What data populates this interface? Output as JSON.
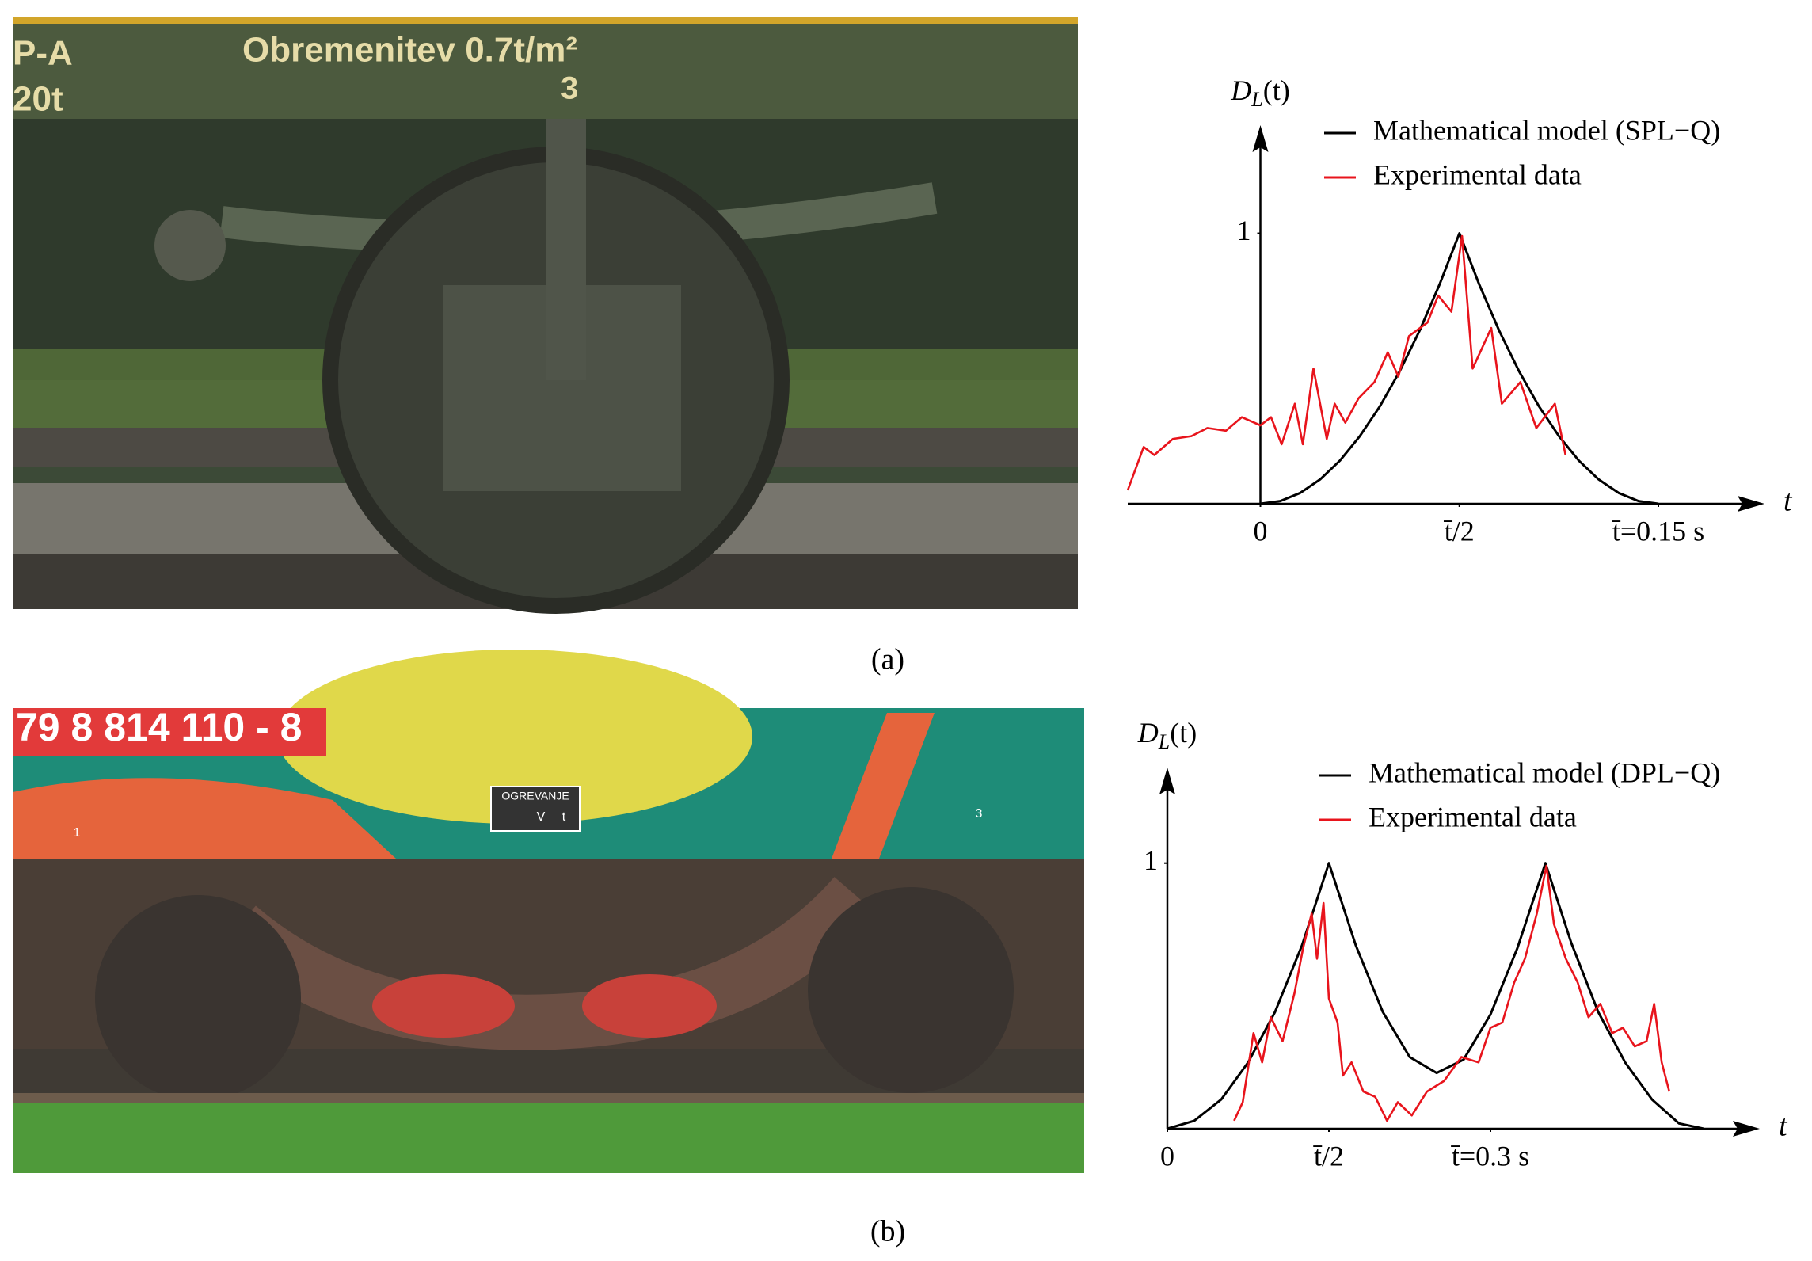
{
  "chart_data": [
    {
      "type": "line",
      "y_label": [
        "D",
        "L",
        "(t)"
      ],
      "x_label": "t",
      "xlim": [
        -0.05,
        0.19
      ],
      "ylim": [
        0,
        1.4
      ],
      "xticks": [
        0,
        {
          "value": 0.075,
          "label": "t̄/2"
        },
        {
          "value": 0.15,
          "label": "t̄=0.15 s"
        }
      ],
      "yticks": [
        1
      ],
      "grid": false,
      "legend": "upper right",
      "series": [
        {
          "name": "Mathematical model (SPL−Q)",
          "color": "#000000",
          "x": [
            0,
            0.0075,
            0.015,
            0.0225,
            0.03,
            0.0375,
            0.045,
            0.0525,
            0.06,
            0.0675,
            0.075,
            0.0825,
            0.09,
            0.0975,
            0.105,
            0.1125,
            0.12,
            0.1275,
            0.135,
            0.1425,
            0.15
          ],
          "values": [
            0,
            0.01,
            0.04,
            0.09,
            0.16,
            0.25,
            0.36,
            0.49,
            0.64,
            0.81,
            1,
            0.81,
            0.64,
            0.49,
            0.36,
            0.25,
            0.16,
            0.09,
            0.04,
            0.01,
            0
          ]
        },
        {
          "name": "Experimental data",
          "color": "#e8141c",
          "x": [
            -0.05,
            -0.044,
            -0.04,
            -0.033,
            -0.026,
            -0.02,
            -0.013,
            -0.007,
            0,
            0.004,
            0.008,
            0.013,
            0.016,
            0.02,
            0.025,
            0.028,
            0.032,
            0.037,
            0.043,
            0.048,
            0.052,
            0.056,
            0.063,
            0.067,
            0.072,
            0.076,
            0.08,
            0.087,
            0.091,
            0.098,
            0.104,
            0.111,
            0.115
          ],
          "values": [
            0.05,
            0.21,
            0.18,
            0.24,
            0.25,
            0.28,
            0.27,
            0.32,
            0.29,
            0.32,
            0.22,
            0.37,
            0.22,
            0.5,
            0.24,
            0.37,
            0.3,
            0.39,
            0.45,
            0.56,
            0.47,
            0.62,
            0.67,
            0.77,
            0.71,
            0.99,
            0.5,
            0.65,
            0.37,
            0.45,
            0.28,
            0.37,
            0.18
          ]
        }
      ]
    },
    {
      "type": "line",
      "y_label": [
        "D",
        "L",
        "(t)"
      ],
      "x_label": "t",
      "xlim": [
        0,
        0.55
      ],
      "ylim": [
        0,
        1.36
      ],
      "xticks": [
        0,
        {
          "value": 0.15,
          "label": "t̄/2"
        },
        {
          "value": 0.3,
          "label": "t̄=0.3 s"
        }
      ],
      "yticks": [
        1
      ],
      "grid": false,
      "legend": "upper right",
      "series": [
        {
          "name": "Mathematical model (DPL−Q)",
          "color": "#000000",
          "x": [
            0,
            0.025,
            0.05,
            0.075,
            0.1,
            0.125,
            0.15,
            0.175,
            0.2,
            0.225,
            0.25,
            0.275,
            0.3,
            0.325,
            0.351,
            0.375,
            0.4,
            0.425,
            0.45,
            0.475,
            0.498
          ],
          "values": [
            0,
            0.03,
            0.11,
            0.25,
            0.44,
            0.69,
            1,
            0.69,
            0.44,
            0.27,
            0.21,
            0.26,
            0.43,
            0.68,
            1,
            0.7,
            0.44,
            0.25,
            0.11,
            0.02,
            0
          ]
        },
        {
          "name": "Experimental data",
          "color": "#e8141c",
          "x": [
            0.062,
            0.07,
            0.08,
            0.088,
            0.096,
            0.107,
            0.118,
            0.126,
            0.134,
            0.139,
            0.145,
            0.15,
            0.158,
            0.163,
            0.171,
            0.182,
            0.193,
            0.204,
            0.214,
            0.227,
            0.241,
            0.257,
            0.273,
            0.289,
            0.3,
            0.311,
            0.322,
            0.332,
            0.343,
            0.352,
            0.359,
            0.37,
            0.381,
            0.391,
            0.402,
            0.413,
            0.423,
            0.434,
            0.445,
            0.452,
            0.459,
            0.466
          ],
          "values": [
            0.03,
            0.1,
            0.36,
            0.25,
            0.42,
            0.33,
            0.51,
            0.68,
            0.81,
            0.64,
            0.85,
            0.49,
            0.4,
            0.2,
            0.25,
            0.14,
            0.12,
            0.03,
            0.1,
            0.05,
            0.14,
            0.18,
            0.27,
            0.25,
            0.38,
            0.4,
            0.55,
            0.64,
            0.81,
            0.99,
            0.77,
            0.64,
            0.55,
            0.42,
            0.47,
            0.36,
            0.38,
            0.31,
            0.33,
            0.47,
            0.25,
            0.14
          ]
        }
      ]
    }
  ],
  "photos": [
    {
      "labels": [
        "P-A",
        "20t",
        "Obremenitev 0.7t/m²",
        "3"
      ]
    },
    {
      "labels": [
        "79 8 814 110 - 8",
        "OGREVANJE",
        "V",
        "t",
        "1",
        "3"
      ]
    }
  ],
  "captions": [
    "(a)",
    "(b)"
  ]
}
